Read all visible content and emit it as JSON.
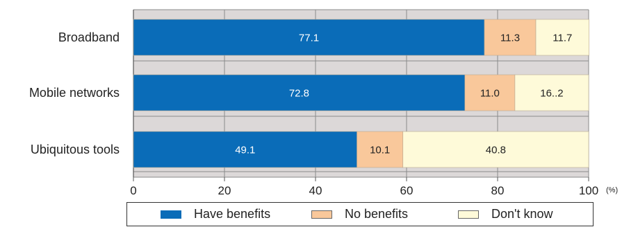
{
  "chart_data": {
    "type": "bar",
    "orientation": "horizontal",
    "stacked": true,
    "categories": [
      "Broadband",
      "Mobile networks",
      "Ubiquitous tools"
    ],
    "series": [
      {
        "name": "Have benefits",
        "color": "#0a6cb8",
        "values": [
          77.1,
          72.8,
          49.1
        ],
        "labels": [
          "77.1",
          "72.8",
          "49.1"
        ],
        "label_color": "#ffffff"
      },
      {
        "name": "No benefits",
        "color": "#f9c89b",
        "values": [
          11.3,
          11.0,
          10.1
        ],
        "labels": [
          "11.3",
          "11.0",
          "10.1"
        ],
        "label_color": "#222222"
      },
      {
        "name": "Don't know",
        "color": "#fefad9",
        "values": [
          11.7,
          16.2,
          40.8
        ],
        "labels": [
          "11.7",
          "16..2",
          "40.8"
        ],
        "label_color": "#222222"
      }
    ],
    "xlim": [
      0,
      100
    ],
    "xticks": [
      0,
      20,
      40,
      60,
      80,
      100
    ],
    "x_unit": "(%)",
    "plot_background": "#dcd8d8",
    "grid": true,
    "legend": {
      "position": "bottom",
      "labels": [
        "Have benefits",
        "No benefits",
        "Don't know"
      ]
    }
  }
}
